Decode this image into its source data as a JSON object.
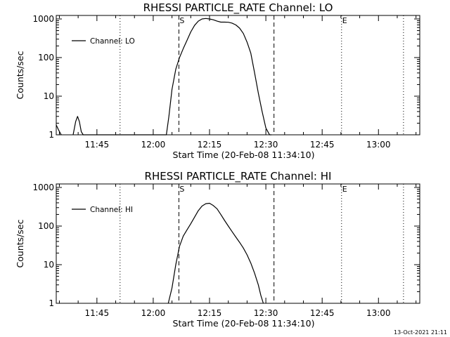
{
  "footer_timestamp": "13-Oct-2021 21:11",
  "chart_data": [
    {
      "type": "line",
      "title": "RHESSI PARTICLE_RATE Channel: LO",
      "xlabel": "Start Time (20-Feb-08 11:34:10)",
      "ylabel": "Counts/sec",
      "y_scale": "log",
      "ylim": [
        1,
        1000
      ],
      "y_ticks": [
        {
          "value": 1,
          "label": "1"
        },
        {
          "value": 10,
          "label": "10"
        },
        {
          "value": 100,
          "label": "100"
        },
        {
          "value": 1000,
          "label": "1000"
        }
      ],
      "xlim": [
        "11:34:10",
        "13:11:00"
      ],
      "x_ticks": [
        "11:45",
        "12:00",
        "12:15",
        "12:30",
        "12:45",
        "13:00"
      ],
      "grid": false,
      "legend_position": "top-left",
      "series": [
        {
          "name": "Channel: LO",
          "x": [
            "11:34:10",
            "11:34:50",
            "11:35:30",
            "11:36:10",
            "11:38:40",
            "11:39:20",
            "11:39:50",
            "11:40:20",
            "11:40:50",
            "11:41:20",
            "12:03:30",
            "12:04:10",
            "12:05:00",
            "12:06:00",
            "12:07:00",
            "12:08:00",
            "12:09:00",
            "12:10:00",
            "12:11:00",
            "12:12:00",
            "12:13:00",
            "12:14:00",
            "12:15:00",
            "12:16:00",
            "12:17:00",
            "12:18:00",
            "12:19:00",
            "12:20:00",
            "12:21:00",
            "12:22:00",
            "12:23:00",
            "12:24:00",
            "12:25:00",
            "12:26:00",
            "12:27:00",
            "12:28:00",
            "12:29:00",
            "12:30:00",
            "12:31:00",
            "12:31:30"
          ],
          "values": [
            1.8,
            1.3,
            1.0,
            null,
            1.0,
            2.2,
            3.0,
            2.2,
            1.2,
            1.0,
            1.0,
            3.0,
            15,
            50,
            100,
            170,
            280,
            460,
            680,
            880,
            1000,
            1030,
            1000,
            950,
            880,
            830,
            830,
            820,
            780,
            700,
            580,
            420,
            250,
            130,
            40,
            12,
            4,
            1.5,
            1.0,
            1.0
          ]
        }
      ],
      "markers": [
        {
          "time": "12:06:50",
          "label": "S",
          "style": "dashed"
        },
        {
          "time": "12:32:10",
          "label": "",
          "style": "dashed"
        },
        {
          "time": "11:51:10",
          "label": "",
          "style": "dotted"
        },
        {
          "time": "12:50:10",
          "label": "E",
          "style": "dotted"
        },
        {
          "time": "13:06:40",
          "label": "",
          "style": "dotted"
        }
      ]
    },
    {
      "type": "line",
      "title": "RHESSI PARTICLE_RATE Channel: HI",
      "xlabel": "Start Time (20-Feb-08 11:34:10)",
      "ylabel": "Counts/sec",
      "y_scale": "log",
      "ylim": [
        1,
        1000
      ],
      "y_ticks": [
        {
          "value": 1,
          "label": "1"
        },
        {
          "value": 10,
          "label": "10"
        },
        {
          "value": 100,
          "label": "100"
        },
        {
          "value": 1000,
          "label": "1000"
        }
      ],
      "xlim": [
        "11:34:10",
        "13:11:00"
      ],
      "x_ticks": [
        "11:45",
        "12:00",
        "12:15",
        "12:30",
        "12:45",
        "13:00"
      ],
      "grid": false,
      "legend_position": "top-left",
      "series": [
        {
          "name": "Channel: HI",
          "x": [
            "12:04:00",
            "12:05:00",
            "12:06:00",
            "12:07:00",
            "12:08:00",
            "12:09:00",
            "12:10:00",
            "12:11:00",
            "12:12:00",
            "12:13:00",
            "12:14:00",
            "12:15:00",
            "12:16:00",
            "12:17:00",
            "12:18:00",
            "12:19:00",
            "12:20:00",
            "12:21:00",
            "12:22:00",
            "12:23:00",
            "12:24:00",
            "12:25:00",
            "12:26:00",
            "12:27:00",
            "12:28:00",
            "12:28:40",
            "12:29:20"
          ],
          "values": [
            1.0,
            2.5,
            10,
            30,
            55,
            80,
            115,
            170,
            250,
            330,
            380,
            390,
            340,
            280,
            200,
            140,
            100,
            72,
            52,
            38,
            27,
            18,
            11,
            6,
            3,
            1.6,
            1.0
          ]
        }
      ],
      "markers": [
        {
          "time": "12:06:50",
          "label": "S",
          "style": "dashed"
        },
        {
          "time": "12:32:10",
          "label": "",
          "style": "dashed"
        },
        {
          "time": "11:51:10",
          "label": "",
          "style": "dotted"
        },
        {
          "time": "12:50:10",
          "label": "E",
          "style": "dotted"
        },
        {
          "time": "13:06:40",
          "label": "",
          "style": "dotted"
        }
      ]
    }
  ]
}
